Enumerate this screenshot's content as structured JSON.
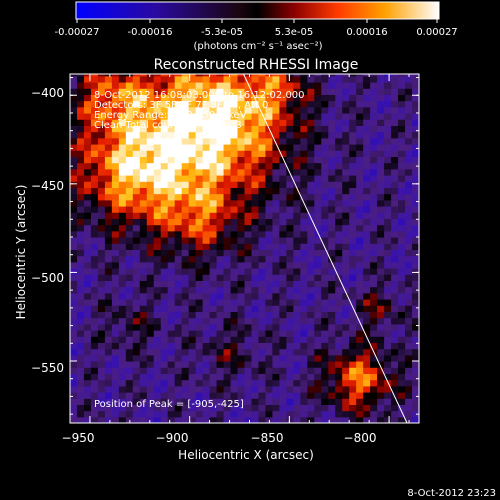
{
  "colorbar": {
    "tick_labels": [
      "-0.00027",
      "-0.00016",
      "-5.3e-05",
      "5.3e-05",
      "0.00016",
      "0.00027"
    ],
    "unit_label": "(photons cm⁻² s⁻¹ asec⁻²)",
    "range": [
      -0.00027,
      0.00027
    ]
  },
  "footer": {
    "timestamp": "8-Oct-2012 23:23"
  },
  "chart_data": {
    "type": "heatmap",
    "title": "Reconstructed RHESSI Image",
    "xlabel": "Heliocentric X (arcsec)",
    "ylabel": "Heliocentric Y (arcsec)",
    "xlim": [
      -960,
      -785
    ],
    "ylim": [
      -585,
      -388
    ],
    "x_ticks": [
      -950,
      -900,
      -850,
      -800
    ],
    "x_tick_labels": [
      "−950",
      "−900",
      "−850",
      "−800"
    ],
    "y_ticks": [
      -400,
      -450,
      -500,
      -550
    ],
    "y_tick_labels": [
      "−400",
      "−450",
      "−500",
      "−550"
    ],
    "annotations": [
      "8-Oct-2012 16:08:03.000 to 16:12:02.000",
      "Detectors: 3F 5F 6F 7F 8F 9F, Att 0",
      "Energy Range: 25.0 - 50.0 keV",
      "Clean    Total counts: 1.40E+03"
    ],
    "peak_label": "Position of Peak = [-905,-425]",
    "peak": {
      "x": -905,
      "y": -425
    },
    "limb_line": {
      "x1": -873,
      "y1": -388,
      "x2": -791,
      "y2": -585
    },
    "grid": false,
    "colors": {
      "low": "#0000ff",
      "mid": "#000000",
      "high": "#ffffff"
    }
  }
}
